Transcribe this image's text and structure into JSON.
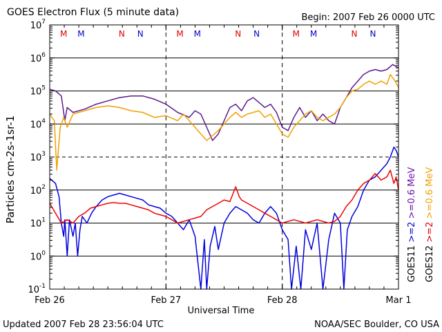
{
  "header": {
    "title": "GOES Electron Flux (5 minute data)",
    "begin": "Begin: 2007 Feb 26 0000 UTC"
  },
  "footer": {
    "updated": "Updated 2007 Feb 28 23:56:04 UTC",
    "credit": "NOAA/SEC Boulder, CO USA"
  },
  "chart_data": {
    "type": "line",
    "title": "GOES Electron Flux (5 minute data)",
    "xlabel": "Universal Time",
    "ylabel": "Particles cm-2s-1sr-1",
    "yscale": "log",
    "ylim_exp": [
      -1,
      7
    ],
    "y_ticks": [
      {
        "base": "10",
        "exp": "-1"
      },
      {
        "base": "10",
        "exp": "0"
      },
      {
        "base": "10",
        "exp": "1"
      },
      {
        "base": "10",
        "exp": "2"
      },
      {
        "base": "10",
        "exp": "3"
      },
      {
        "base": "10",
        "exp": "4"
      },
      {
        "base": "10",
        "exp": "5"
      },
      {
        "base": "10",
        "exp": "6"
      },
      {
        "base": "10",
        "exp": "7"
      }
    ],
    "xlim_days": [
      0,
      3
    ],
    "x_ticks": [
      {
        "day": 0,
        "label": "Feb 26"
      },
      {
        "day": 1,
        "label": "Feb 27"
      },
      {
        "day": 2,
        "label": "Feb 28"
      },
      {
        "day": 3,
        "label": "Mar 1"
      }
    ],
    "threshold_exp": 3,
    "markers": [
      {
        "day": 0.12,
        "label": "M",
        "color": "#dd0000"
      },
      {
        "day": 0.27,
        "label": "M",
        "color": "#0000cc"
      },
      {
        "day": 0.62,
        "label": "N",
        "color": "#dd0000"
      },
      {
        "day": 0.78,
        "label": "N",
        "color": "#0000cc"
      },
      {
        "day": 1.12,
        "label": "M",
        "color": "#dd0000"
      },
      {
        "day": 1.27,
        "label": "M",
        "color": "#0000cc"
      },
      {
        "day": 1.62,
        "label": "N",
        "color": "#dd0000"
      },
      {
        "day": 1.78,
        "label": "N",
        "color": "#0000cc"
      },
      {
        "day": 2.12,
        "label": "M",
        "color": "#dd0000"
      },
      {
        "day": 2.27,
        "label": "M",
        "color": "#0000cc"
      },
      {
        "day": 2.62,
        "label": "N",
        "color": "#dd0000"
      },
      {
        "day": 2.78,
        "label": "N",
        "color": "#0000cc"
      }
    ],
    "legend": [
      {
        "sat": "GOES11",
        "ch1": ">=2",
        "ch2": ">=0.6 MeV",
        "ch1_color": "#0000cc",
        "ch2_color": "#6a0dad"
      },
      {
        "sat": "GOES12",
        "ch1": ">=2",
        "ch2": ">=0.6 MeV",
        "ch1_color": "#dd0000",
        "ch2_color": "#f0a000"
      }
    ],
    "series": [
      {
        "key": "g11_06",
        "color": "#5a1a8c",
        "points": [
          [
            0,
            5.05
          ],
          [
            0.05,
            5.0
          ],
          [
            0.1,
            4.85
          ],
          [
            0.13,
            4.1
          ],
          [
            0.15,
            4.5
          ],
          [
            0.2,
            4.35
          ],
          [
            0.3,
            4.45
          ],
          [
            0.4,
            4.6
          ],
          [
            0.5,
            4.7
          ],
          [
            0.6,
            4.8
          ],
          [
            0.7,
            4.85
          ],
          [
            0.8,
            4.85
          ],
          [
            0.9,
            4.75
          ],
          [
            1.0,
            4.6
          ],
          [
            1.1,
            4.35
          ],
          [
            1.2,
            4.2
          ],
          [
            1.25,
            4.4
          ],
          [
            1.3,
            4.3
          ],
          [
            1.35,
            3.9
          ],
          [
            1.4,
            3.5
          ],
          [
            1.45,
            3.7
          ],
          [
            1.5,
            4.1
          ],
          [
            1.55,
            4.5
          ],
          [
            1.6,
            4.6
          ],
          [
            1.65,
            4.4
          ],
          [
            1.7,
            4.7
          ],
          [
            1.75,
            4.8
          ],
          [
            1.8,
            4.65
          ],
          [
            1.85,
            4.5
          ],
          [
            1.9,
            4.6
          ],
          [
            1.95,
            4.35
          ],
          [
            2.0,
            3.9
          ],
          [
            2.05,
            3.8
          ],
          [
            2.1,
            4.2
          ],
          [
            2.15,
            4.5
          ],
          [
            2.2,
            4.2
          ],
          [
            2.25,
            4.4
          ],
          [
            2.3,
            4.1
          ],
          [
            2.35,
            4.3
          ],
          [
            2.4,
            4.1
          ],
          [
            2.45,
            4.0
          ],
          [
            2.5,
            4.5
          ],
          [
            2.55,
            4.8
          ],
          [
            2.6,
            5.1
          ],
          [
            2.65,
            5.3
          ],
          [
            2.7,
            5.5
          ],
          [
            2.75,
            5.6
          ],
          [
            2.8,
            5.65
          ],
          [
            2.85,
            5.6
          ],
          [
            2.9,
            5.65
          ],
          [
            2.95,
            5.8
          ],
          [
            3.0,
            5.7
          ]
        ]
      },
      {
        "key": "g12_06",
        "color": "#f0a000",
        "points": [
          [
            0,
            4.3
          ],
          [
            0.04,
            4.1
          ],
          [
            0.06,
            2.6
          ],
          [
            0.09,
            3.9
          ],
          [
            0.12,
            4.2
          ],
          [
            0.15,
            3.9
          ],
          [
            0.2,
            4.3
          ],
          [
            0.3,
            4.4
          ],
          [
            0.4,
            4.5
          ],
          [
            0.5,
            4.55
          ],
          [
            0.6,
            4.5
          ],
          [
            0.7,
            4.4
          ],
          [
            0.8,
            4.35
          ],
          [
            0.9,
            4.2
          ],
          [
            1.0,
            4.25
          ],
          [
            1.1,
            4.1
          ],
          [
            1.15,
            4.3
          ],
          [
            1.2,
            4.1
          ],
          [
            1.3,
            3.7
          ],
          [
            1.35,
            3.5
          ],
          [
            1.45,
            3.8
          ],
          [
            1.5,
            4.0
          ],
          [
            1.55,
            4.2
          ],
          [
            1.6,
            4.35
          ],
          [
            1.65,
            4.2
          ],
          [
            1.7,
            4.3
          ],
          [
            1.75,
            4.35
          ],
          [
            1.8,
            4.4
          ],
          [
            1.85,
            4.2
          ],
          [
            1.9,
            4.3
          ],
          [
            1.95,
            4.0
          ],
          [
            2.0,
            3.7
          ],
          [
            2.05,
            3.6
          ],
          [
            2.1,
            3.9
          ],
          [
            2.15,
            4.1
          ],
          [
            2.2,
            4.3
          ],
          [
            2.25,
            4.4
          ],
          [
            2.3,
            4.2
          ],
          [
            2.35,
            4.1
          ],
          [
            2.4,
            4.2
          ],
          [
            2.45,
            4.3
          ],
          [
            2.5,
            4.5
          ],
          [
            2.55,
            4.8
          ],
          [
            2.6,
            5.0
          ],
          [
            2.65,
            5.05
          ],
          [
            2.7,
            5.2
          ],
          [
            2.75,
            5.3
          ],
          [
            2.8,
            5.2
          ],
          [
            2.85,
            5.3
          ],
          [
            2.9,
            5.2
          ],
          [
            2.93,
            5.5
          ],
          [
            2.97,
            5.3
          ],
          [
            3.0,
            5.1
          ]
        ]
      },
      {
        "key": "g11_2",
        "color": "#0000dd",
        "points": [
          [
            0,
            2.35
          ],
          [
            0.05,
            2.2
          ],
          [
            0.08,
            1.8
          ],
          [
            0.1,
            1.0
          ],
          [
            0.12,
            0.6
          ],
          [
            0.13,
            1.1
          ],
          [
            0.15,
            0.0
          ],
          [
            0.17,
            1.1
          ],
          [
            0.2,
            0.6
          ],
          [
            0.22,
            1.0
          ],
          [
            0.24,
            0.0
          ],
          [
            0.26,
            0.8
          ],
          [
            0.28,
            1.2
          ],
          [
            0.32,
            1.0
          ],
          [
            0.36,
            1.3
          ],
          [
            0.4,
            1.5
          ],
          [
            0.45,
            1.7
          ],
          [
            0.5,
            1.8
          ],
          [
            0.55,
            1.85
          ],
          [
            0.6,
            1.9
          ],
          [
            0.65,
            1.85
          ],
          [
            0.7,
            1.8
          ],
          [
            0.75,
            1.75
          ],
          [
            0.8,
            1.7
          ],
          [
            0.85,
            1.55
          ],
          [
            0.9,
            1.5
          ],
          [
            0.95,
            1.45
          ],
          [
            1.0,
            1.3
          ],
          [
            1.05,
            1.2
          ],
          [
            1.1,
            1.0
          ],
          [
            1.15,
            0.8
          ],
          [
            1.2,
            1.1
          ],
          [
            1.25,
            0.6
          ],
          [
            1.3,
            -1.0
          ],
          [
            1.33,
            0.5
          ],
          [
            1.35,
            -1.0
          ],
          [
            1.38,
            0.3
          ],
          [
            1.42,
            0.9
          ],
          [
            1.45,
            0.2
          ],
          [
            1.5,
            1.0
          ],
          [
            1.55,
            1.3
          ],
          [
            1.6,
            1.5
          ],
          [
            1.65,
            1.4
          ],
          [
            1.7,
            1.3
          ],
          [
            1.75,
            1.1
          ],
          [
            1.8,
            1.0
          ],
          [
            1.85,
            1.3
          ],
          [
            1.9,
            1.5
          ],
          [
            1.95,
            1.3
          ],
          [
            2.0,
            0.8
          ],
          [
            2.05,
            0.5
          ],
          [
            2.08,
            -1.0
          ],
          [
            2.12,
            0.3
          ],
          [
            2.16,
            -1.0
          ],
          [
            2.2,
            0.8
          ],
          [
            2.25,
            0.2
          ],
          [
            2.3,
            1.0
          ],
          [
            2.35,
            -1.0
          ],
          [
            2.4,
            0.5
          ],
          [
            2.45,
            1.3
          ],
          [
            2.5,
            1.0
          ],
          [
            2.53,
            -1.0
          ],
          [
            2.56,
            0.8
          ],
          [
            2.6,
            1.2
          ],
          [
            2.65,
            1.5
          ],
          [
            2.7,
            2.0
          ],
          [
            2.75,
            2.3
          ],
          [
            2.8,
            2.4
          ],
          [
            2.85,
            2.6
          ],
          [
            2.9,
            2.8
          ],
          [
            2.93,
            3.0
          ],
          [
            2.96,
            3.3
          ],
          [
            2.98,
            3.2
          ],
          [
            3.0,
            3.0
          ]
        ]
      },
      {
        "key": "g12_2",
        "color": "#ee0000",
        "points": [
          [
            0,
            1.6
          ],
          [
            0.05,
            1.3
          ],
          [
            0.1,
            1.0
          ],
          [
            0.15,
            1.1
          ],
          [
            0.2,
            1.0
          ],
          [
            0.25,
            1.2
          ],
          [
            0.3,
            1.3
          ],
          [
            0.35,
            1.45
          ],
          [
            0.4,
            1.5
          ],
          [
            0.45,
            1.55
          ],
          [
            0.5,
            1.6
          ],
          [
            0.55,
            1.62
          ],
          [
            0.6,
            1.6
          ],
          [
            0.65,
            1.6
          ],
          [
            0.7,
            1.55
          ],
          [
            0.75,
            1.5
          ],
          [
            0.8,
            1.45
          ],
          [
            0.85,
            1.4
          ],
          [
            0.9,
            1.3
          ],
          [
            0.95,
            1.25
          ],
          [
            1.0,
            1.2
          ],
          [
            1.05,
            1.1
          ],
          [
            1.1,
            1.0
          ],
          [
            1.15,
            1.05
          ],
          [
            1.2,
            1.1
          ],
          [
            1.3,
            1.2
          ],
          [
            1.35,
            1.4
          ],
          [
            1.4,
            1.5
          ],
          [
            1.45,
            1.6
          ],
          [
            1.5,
            1.7
          ],
          [
            1.55,
            1.65
          ],
          [
            1.6,
            2.1
          ],
          [
            1.63,
            1.8
          ],
          [
            1.65,
            1.7
          ],
          [
            1.7,
            1.6
          ],
          [
            1.75,
            1.5
          ],
          [
            1.8,
            1.4
          ],
          [
            1.85,
            1.3
          ],
          [
            1.9,
            1.2
          ],
          [
            1.95,
            1.1
          ],
          [
            2.0,
            1.0
          ],
          [
            2.1,
            1.1
          ],
          [
            2.2,
            1.0
          ],
          [
            2.3,
            1.1
          ],
          [
            2.4,
            1.0
          ],
          [
            2.45,
            1.05
          ],
          [
            2.5,
            1.2
          ],
          [
            2.55,
            1.5
          ],
          [
            2.6,
            1.7
          ],
          [
            2.65,
            2.0
          ],
          [
            2.7,
            2.2
          ],
          [
            2.75,
            2.3
          ],
          [
            2.8,
            2.5
          ],
          [
            2.85,
            2.3
          ],
          [
            2.9,
            2.4
          ],
          [
            2.93,
            2.6
          ],
          [
            2.96,
            2.2
          ],
          [
            2.98,
            2.4
          ],
          [
            3.0,
            2.0
          ]
        ]
      }
    ]
  }
}
